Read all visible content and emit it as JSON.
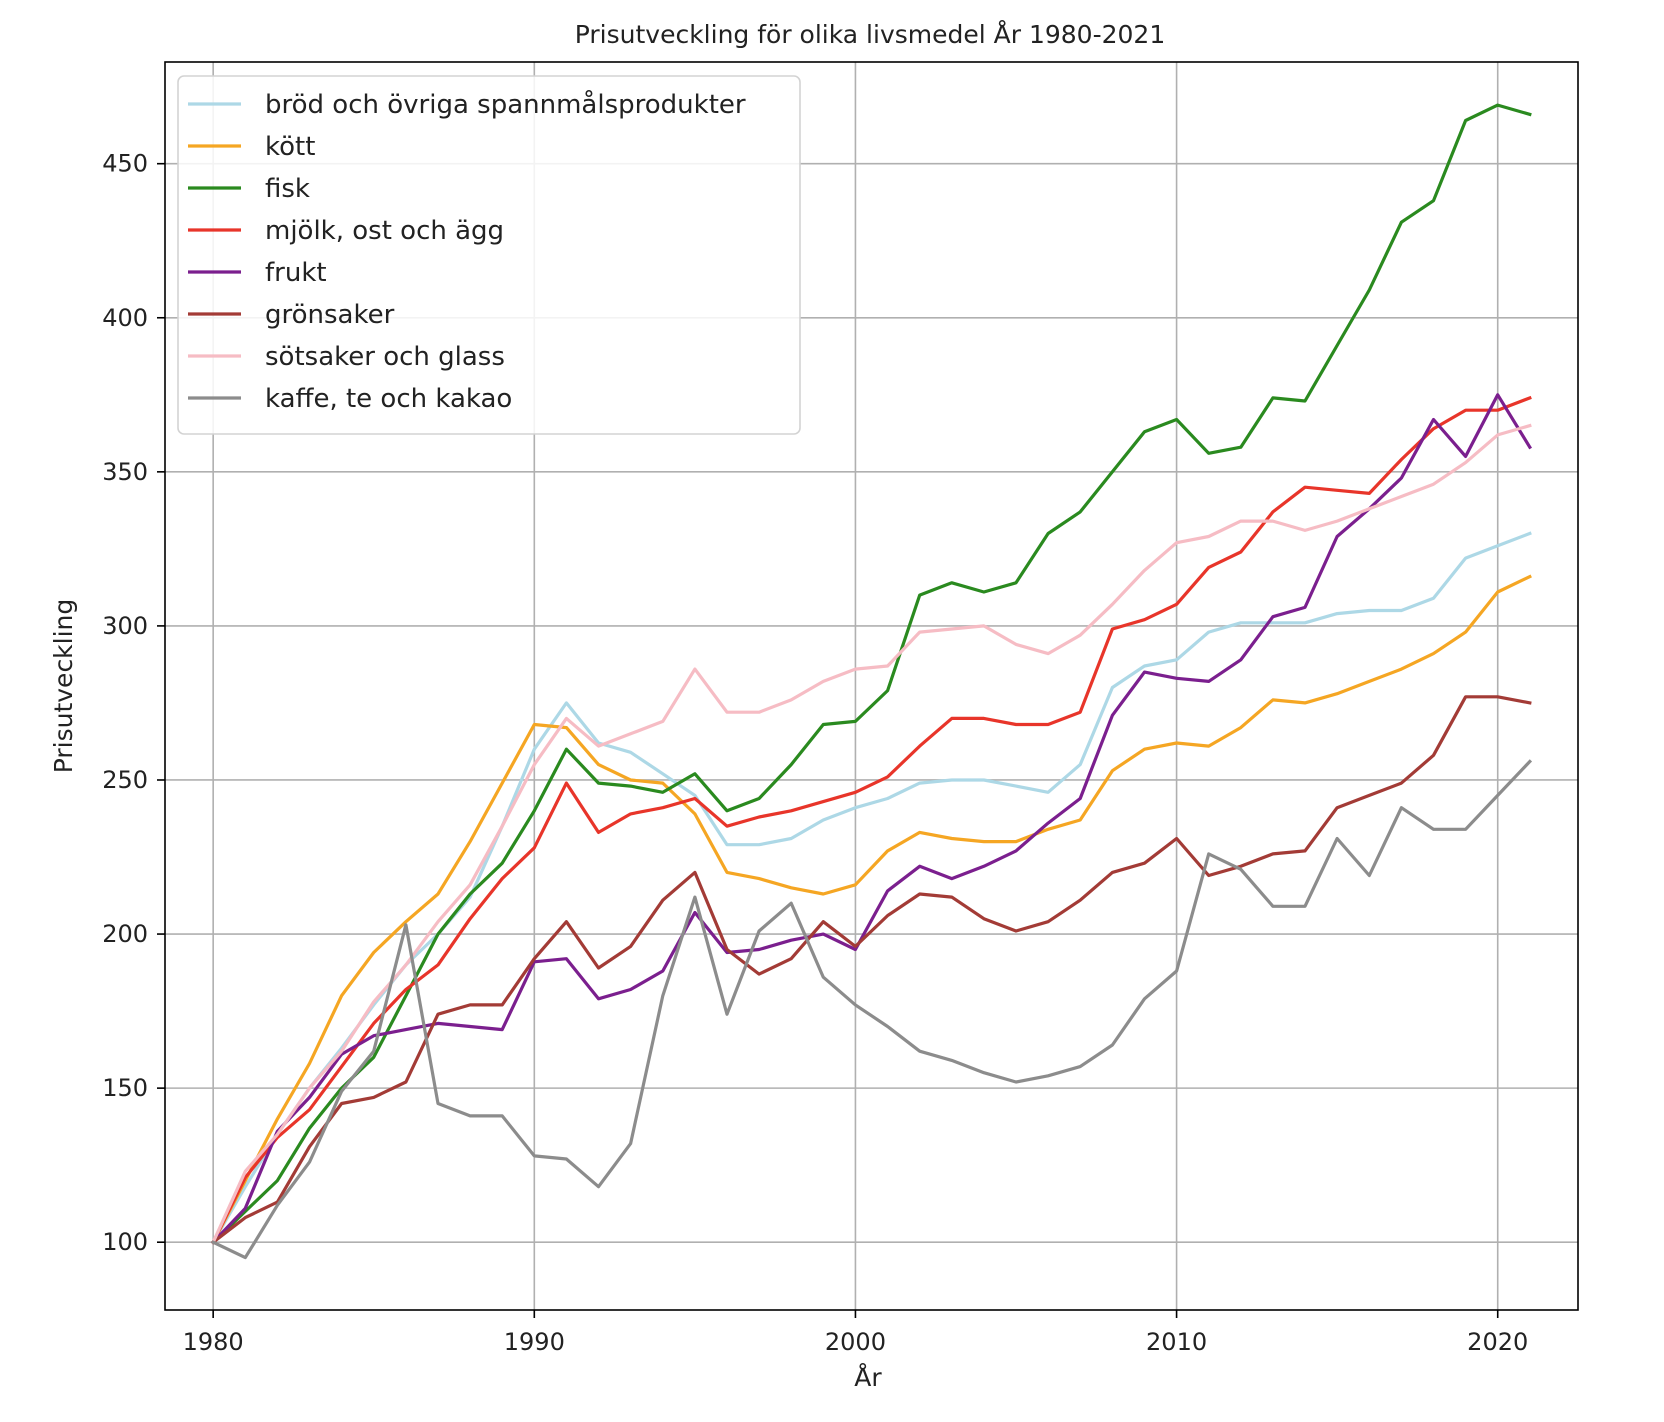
{
  "chart_data": {
    "type": "line",
    "title": "Prisutveckling för olika livsmedel År 1980-2021",
    "xlabel": "År",
    "ylabel": "Prisutveckling",
    "xlim": [
      1978.5,
      2022.5
    ],
    "ylim": [
      78,
      483
    ],
    "xticks": [
      1980,
      1990,
      2000,
      2010,
      2020
    ],
    "yticks": [
      100,
      150,
      200,
      250,
      300,
      350,
      400,
      450
    ],
    "grid": true,
    "legend_position": "upper-left",
    "x": [
      1980,
      1981,
      1982,
      1983,
      1984,
      1985,
      1986,
      1987,
      1988,
      1989,
      1990,
      1991,
      1992,
      1993,
      1994,
      1995,
      1996,
      1997,
      1998,
      1999,
      2000,
      2001,
      2002,
      2003,
      2004,
      2005,
      2006,
      2007,
      2008,
      2009,
      2010,
      2011,
      2012,
      2013,
      2014,
      2015,
      2016,
      2017,
      2018,
      2019,
      2020,
      2021
    ],
    "series": [
      {
        "name": "bröd och övriga spannmålsprodukter",
        "color": "#add8e6",
        "values": [
          100,
          118,
          135,
          150,
          163,
          177,
          190,
          200,
          212,
          235,
          260,
          275,
          262,
          259,
          252,
          245,
          229,
          229,
          231,
          237,
          241,
          244,
          249,
          250,
          250,
          248,
          246,
          255,
          280,
          287,
          289,
          298,
          301,
          301,
          301,
          304,
          305,
          305,
          309,
          322,
          326,
          330
        ]
      },
      {
        "name": "kött",
        "color": "#f5a623",
        "values": [
          100,
          120,
          140,
          158,
          180,
          194,
          204,
          213,
          230,
          249,
          268,
          267,
          255,
          250,
          249,
          239,
          220,
          218,
          215,
          213,
          216,
          227,
          233,
          231,
          230,
          230,
          234,
          237,
          253,
          260,
          262,
          261,
          267,
          276,
          275,
          278,
          282,
          286,
          291,
          298,
          311,
          316
        ]
      },
      {
        "name": "fisk",
        "color": "#2a8a1f",
        "values": [
          100,
          110,
          120,
          137,
          150,
          160,
          180,
          200,
          213,
          223,
          240,
          260,
          249,
          248,
          246,
          252,
          240,
          244,
          255,
          268,
          269,
          279,
          310,
          314,
          311,
          314,
          330,
          337,
          350,
          363,
          367,
          356,
          358,
          374,
          373,
          391,
          409,
          431,
          438,
          464,
          469,
          466
        ]
      },
      {
        "name": "mjölk, ost och ägg",
        "color": "#e8352a",
        "values": [
          100,
          121,
          134,
          143,
          157,
          171,
          182,
          190,
          205,
          218,
          228,
          249,
          233,
          239,
          241,
          244,
          235,
          238,
          240,
          243,
          246,
          251,
          261,
          270,
          270,
          268,
          268,
          272,
          299,
          302,
          307,
          319,
          324,
          337,
          345,
          344,
          343,
          354,
          364,
          370,
          370,
          374
        ]
      },
      {
        "name": "frukt",
        "color": "#7b1f8e",
        "values": [
          100,
          111,
          136,
          147,
          161,
          167,
          169,
          171,
          170,
          169,
          191,
          192,
          179,
          182,
          188,
          207,
          194,
          195,
          198,
          200,
          195,
          214,
          222,
          218,
          222,
          227,
          236,
          244,
          271,
          285,
          283,
          282,
          289,
          303,
          306,
          329,
          338,
          348,
          367,
          355,
          375,
          358
        ]
      },
      {
        "name": "grönsaker",
        "color": "#a33b36",
        "values": [
          100,
          108,
          113,
          131,
          145,
          147,
          152,
          174,
          177,
          177,
          192,
          204,
          189,
          196,
          211,
          220,
          195,
          187,
          192,
          204,
          196,
          206,
          213,
          212,
          205,
          201,
          204,
          211,
          220,
          223,
          231,
          219,
          222,
          226,
          227,
          241,
          245,
          249,
          258,
          277,
          277,
          275
        ]
      },
      {
        "name": "sötsaker och glass",
        "color": "#f6bcc4",
        "values": [
          100,
          123,
          135,
          150,
          162,
          178,
          190,
          204,
          216,
          235,
          255,
          270,
          261,
          265,
          269,
          286,
          272,
          272,
          276,
          282,
          286,
          287,
          298,
          299,
          300,
          294,
          291,
          297,
          307,
          318,
          327,
          329,
          334,
          334,
          331,
          334,
          338,
          342,
          346,
          353,
          362,
          365
        ]
      },
      {
        "name": "kaffe, te och kakao",
        "color": "#8c8c8c",
        "values": [
          100,
          95,
          112,
          126,
          149,
          162,
          203,
          145,
          141,
          141,
          128,
          127,
          118,
          132,
          180,
          212,
          174,
          201,
          210,
          186,
          177,
          170,
          162,
          159,
          155,
          152,
          154,
          157,
          164,
          179,
          188,
          226,
          221,
          209,
          209,
          231,
          219,
          241,
          234,
          234,
          245,
          256
        ]
      }
    ]
  }
}
